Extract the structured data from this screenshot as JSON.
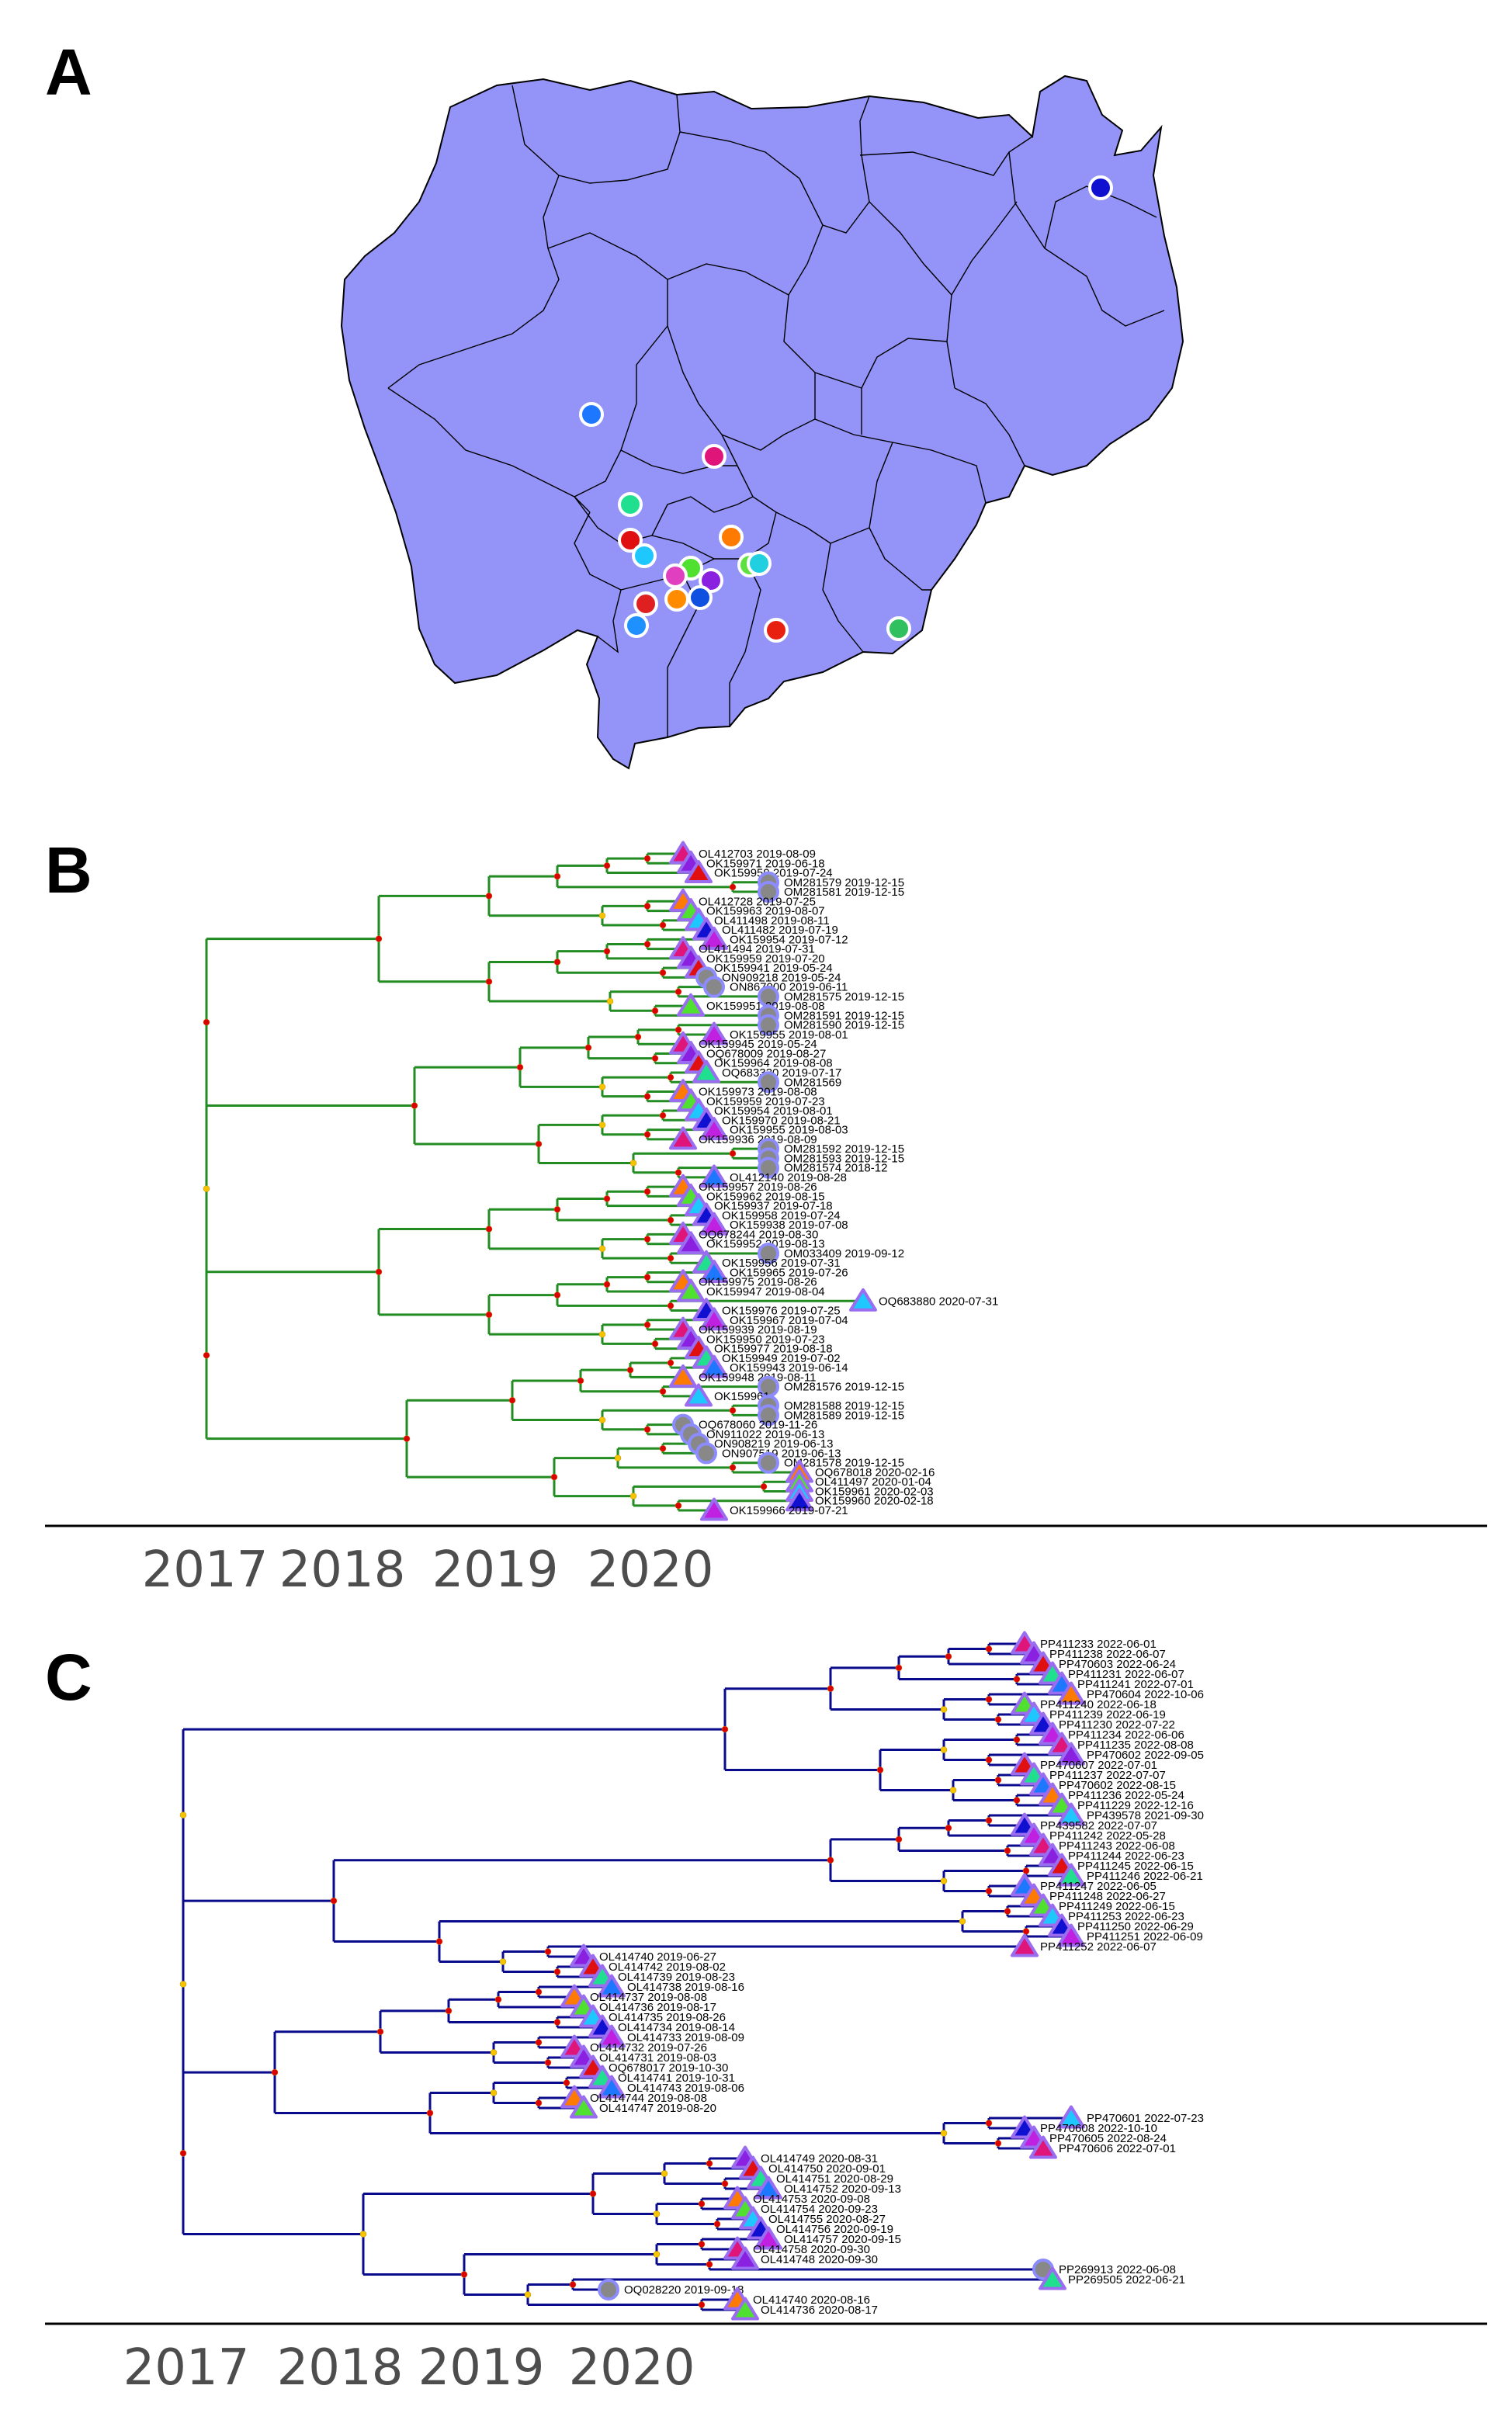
{
  "panels": {
    "a": {
      "letter": "A"
    },
    "b": {
      "letter": "B"
    },
    "c": {
      "letter": "C"
    }
  },
  "colors": {
    "map_fill": "#9393f8",
    "map_border": "#000000",
    "tree_b_branch": "#228b22",
    "tree_c_branch": "#0a0a8c",
    "internal_node_high": "#dd0000",
    "internal_node_mid": "#f5c400",
    "tip_outline": "#9a6cf0",
    "circle_tip_fill": "#888888",
    "circle_tip_outline": "#8c8cff"
  },
  "map_points": [
    {
      "color": "#1010d0"
    },
    {
      "color": "#1e78ff"
    },
    {
      "color": "#e0157a"
    },
    {
      "color": "#20e090"
    },
    {
      "color": "#e01010"
    },
    {
      "color": "#1ec8ff"
    },
    {
      "color": "#ff7a00"
    },
    {
      "color": "#8a20e0"
    },
    {
      "color": "#50e030"
    },
    {
      "color": "#e82010"
    },
    {
      "color": "#1e90ff"
    },
    {
      "color": "#ff8c00"
    },
    {
      "color": "#1050e0"
    },
    {
      "color": "#60e040"
    },
    {
      "color": "#e02020"
    },
    {
      "color": "#20d0e0"
    },
    {
      "color": "#e040c0"
    },
    {
      "color": "#30c060"
    }
  ],
  "axis_b": {
    "ticks": [
      "2017",
      "2018",
      "2019",
      "2020"
    ]
  },
  "axis_c": {
    "ticks": [
      "2017",
      "2018",
      "2019",
      "2020"
    ]
  },
  "tree_b_labels": [
    "OL412703 2019-08-09",
    "OK159971 2019-06-18",
    "OK159959 2019-07-24",
    "OM281579 2019-12-15",
    "OM281581 2019-12-15",
    "OL412728 2019-07-25",
    "OK159963 2019-08-07",
    "OL411498 2019-08-11",
    "OL411482 2019-07-19",
    "OK159954 2019-07-12",
    "OL411494 2019-07-31",
    "OK159959 2019-07-20",
    "OK159941 2019-05-24",
    "ON909218 2019-05-24",
    "ON867000 2019-06-11",
    "OM281575 2019-12-15",
    "OK159951 2019-08-08",
    "OM281591 2019-12-15",
    "OM281590 2019-12-15",
    "OK159955 2019-08-01",
    "OK159945 2019-05-24",
    "OQ678009 2019-08-27",
    "OK159964 2019-08-08",
    "OQ683330 2019-07-17",
    "OM281569",
    "OK159973 2019-08-08",
    "OK159959 2019-07-23",
    "OK159954 2019-08-01",
    "OK159970 2019-08-21",
    "OK159955 2019-08-03",
    "OK159936 2019-08-09",
    "OM281592 2019-12-15",
    "OM281593 2019-12-15",
    "OM281574 2018-12",
    "OL412140 2019-08-28",
    "OK159957 2019-08-26",
    "OK159962 2019-08-15",
    "OK159937 2019-07-18",
    "OK159958 2019-07-24",
    "OK159938 2019-07-08",
    "OQ678244 2019-08-30",
    "OK159952 2019-08-13",
    "OM033409 2019-09-12",
    "OK159956 2019-07-31",
    "OK159965 2019-07-26",
    "OK159975 2019-08-26",
    "OK159947 2019-08-04",
    "OQ683880 2020-07-31",
    "OK159976 2019-07-25",
    "OK159967 2019-07-04",
    "OK159939 2019-08-19",
    "OK159950 2019-07-23",
    "OK159977 2019-08-18",
    "OK159949 2019-07-02",
    "OK159943 2019-06-14",
    "OK159948 2019-08-11",
    "OM281576 2019-12-15",
    "OK159961",
    "OM281588 2019-12-15",
    "OM281589 2019-12-15",
    "OQ678060 2019-11-26",
    "ON911022 2019-06-13",
    "ON908219 2019-06-13",
    "ON907519 2019-06-13",
    "OM281578 2019-12-15",
    "OQ678018 2020-02-16",
    "OL411497 2020-01-04",
    "OK159961 2020-02-03",
    "OK159960 2020-02-18",
    "OK159966 2019-07-21"
  ],
  "tree_c_labels": [
    "PP411233 2022-06-01",
    "PP411238 2022-06-07",
    "PP470603 2022-06-24",
    "PP411231 2022-06-07",
    "PP411241 2022-07-01",
    "PP470604 2022-10-06",
    "PP411240 2022-06-18",
    "PP411239 2022-06-19",
    "PP411230 2022-07-22",
    "PP411234 2022-06-06",
    "PP411235 2022-08-08",
    "PP470602 2022-09-05",
    "PP470607 2022-07-01",
    "PP411237 2022-07-07",
    "PP470602 2022-08-15",
    "PP411236 2022-05-24",
    "PP411229 2022-12-16",
    "PP439578 2021-09-30",
    "PP439582 2022-07-07",
    "PP411242 2022-05-28",
    "PP411243 2022-06-08",
    "PP411244 2022-06-23",
    "PP411245 2022-06-15",
    "PP411246 2022-06-21",
    "PP411247 2022-06-05",
    "PP411248 2022-06-27",
    "PP411249 2022-06-15",
    "PP411253 2022-06-23",
    "PP411250 2022-06-29",
    "PP411251 2022-06-09",
    "PP411252 2022-06-07",
    "OL414740 2019-06-27",
    "OL414742 2019-08-02",
    "OL414739 2019-08-23",
    "OL414738 2019-08-16",
    "OL414737 2019-08-08",
    "OL414736 2019-08-17",
    "OL414735 2019-08-26",
    "OL414734 2019-08-14",
    "OL414733 2019-08-09",
    "OL414732 2019-07-26",
    "OL414731 2019-08-03",
    "OQ678017 2019-10-30",
    "OL414741 2019-10-31",
    "OL414743 2019-08-06",
    "OL414744 2019-08-08",
    "OL414747 2019-08-20",
    "PP470601 2022-07-23",
    "PP470608 2022-10-10",
    "PP470605 2022-08-24",
    "PP470606 2022-07-01",
    "OL414749 2020-08-31",
    "OL414750 2020-09-01",
    "OL414751 2020-08-29",
    "OL414752 2020-09-13",
    "OL414753 2020-09-08",
    "OL414754 2020-09-23",
    "OL414755 2020-08-27",
    "OL414756 2020-09-19",
    "OL414757 2020-09-15",
    "OL414758 2020-09-30",
    "OL414748 2020-09-30",
    "PP269913 2022-06-08",
    "PP269505 2022-06-21",
    "OQ028220 2019-09-18",
    "OL414740 2020-08-16",
    "OL414736 2020-08-17"
  ]
}
